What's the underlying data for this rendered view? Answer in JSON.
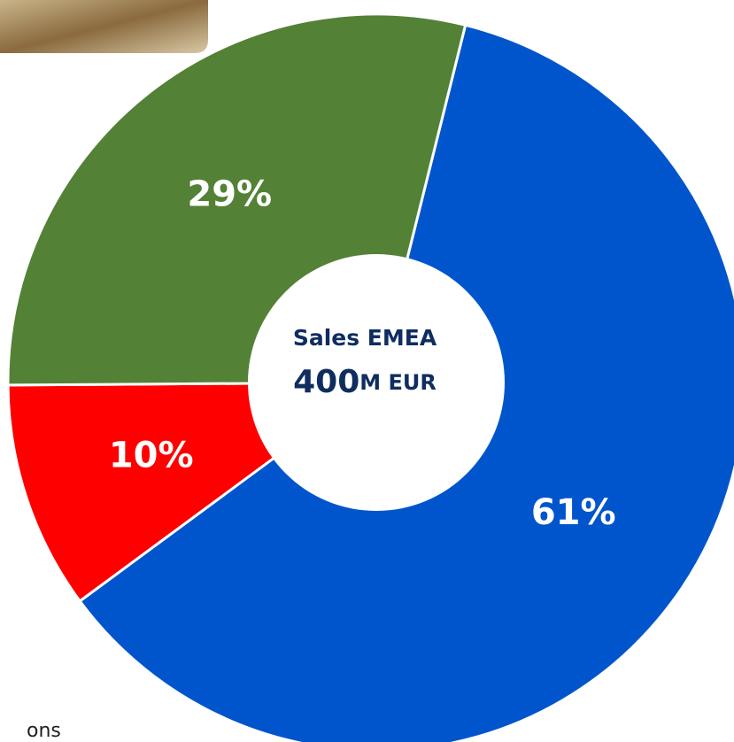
{
  "chart_data": {
    "type": "donut",
    "center_title": "Sales EMEA",
    "center_value": "400",
    "center_unit": "M EUR",
    "values": [
      61,
      10,
      29
    ],
    "value_labels": [
      "61%",
      "10%",
      "29%"
    ],
    "colors": [
      "#0055cc",
      "#ff0000",
      "#538135"
    ]
  },
  "footer_text": "ons"
}
